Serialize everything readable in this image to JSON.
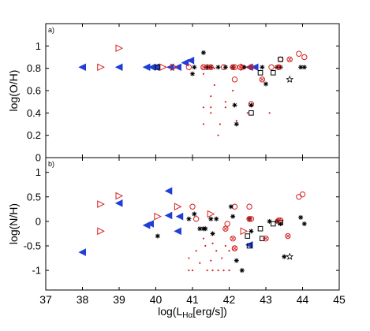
{
  "chart_data": [
    {
      "type": "scatter",
      "panel_label": "a)",
      "ylabel": "log(O/H)",
      "xlabel": "",
      "xlim": [
        37,
        45
      ],
      "ylim": [
        0,
        1.2
      ],
      "xticks": [
        "37",
        "38",
        "39",
        "40",
        "41",
        "42",
        "43",
        "44",
        "45"
      ],
      "yticks": [
        "0",
        "0.2",
        "0.4",
        "0.6",
        "0.8",
        "1"
      ],
      "ytick_values": [
        0,
        0.2,
        0.4,
        0.6,
        0.8,
        1.0
      ],
      "series": [
        {
          "marker": "triangle-left-filled",
          "color": "#1f3fd6",
          "points": [
            [
              38.0,
              0.81
            ],
            [
              39.0,
              0.81
            ],
            [
              39.75,
              0.81
            ],
            [
              39.9,
              0.81
            ],
            [
              40.0,
              0.81
            ],
            [
              40.4,
              0.81
            ],
            [
              40.6,
              0.81
            ],
            [
              40.8,
              0.85
            ],
            [
              40.95,
              0.87
            ],
            [
              42.55,
              0.81
            ],
            [
              42.7,
              0.81
            ]
          ]
        },
        {
          "marker": "triangle-right-open",
          "color": "#d62020",
          "points": [
            [
              38.5,
              0.81
            ],
            [
              39.0,
              0.98
            ],
            [
              40.2,
              0.81
            ],
            [
              40.5,
              0.81
            ],
            [
              42.4,
              0.81
            ]
          ]
        },
        {
          "marker": "circle-open",
          "color": "#d62020",
          "points": [
            [
              40.9,
              0.81
            ],
            [
              41.3,
              0.81
            ],
            [
              41.4,
              0.81
            ],
            [
              41.85,
              0.81
            ],
            [
              42.15,
              0.81
            ],
            [
              42.15,
              0.7
            ],
            [
              42.6,
              0.81
            ],
            [
              42.6,
              0.48
            ],
            [
              43.15,
              0.81
            ],
            [
              43.4,
              0.88
            ],
            [
              43.9,
              0.93
            ],
            [
              44.05,
              0.9
            ]
          ]
        },
        {
          "marker": "asterisk",
          "color": "#000000",
          "points": [
            [
              41.0,
              0.75
            ],
            [
              41.05,
              0.81
            ],
            [
              41.3,
              0.94
            ],
            [
              41.4,
              0.81
            ],
            [
              41.5,
              0.81
            ],
            [
              41.7,
              0.81
            ],
            [
              41.9,
              0.81
            ],
            [
              42.1,
              0.81
            ],
            [
              42.15,
              0.47
            ],
            [
              42.2,
              0.3
            ],
            [
              42.4,
              0.81
            ],
            [
              42.6,
              0.47
            ],
            [
              42.9,
              0.81
            ],
            [
              43.0,
              0.66
            ],
            [
              43.3,
              0.81
            ],
            [
              43.4,
              0.81
            ],
            [
              43.95,
              0.81
            ],
            [
              44.05,
              0.81
            ]
          ]
        },
        {
          "marker": "square-open",
          "color": "#000000",
          "points": [
            [
              40.05,
              0.81
            ],
            [
              42.6,
              0.4
            ],
            [
              42.85,
              0.76
            ],
            [
              43.2,
              0.76
            ],
            [
              43.4,
              0.88
            ]
          ]
        },
        {
          "marker": "circle-x",
          "color": "#d62020",
          "points": [
            [
              41.3,
              0.81
            ],
            [
              41.5,
              0.81
            ],
            [
              42.1,
              0.81
            ],
            [
              42.3,
              0.81
            ],
            [
              42.6,
              0.81
            ],
            [
              42.9,
              0.7
            ],
            [
              43.35,
              0.81
            ],
            [
              43.65,
              0.88
            ]
          ]
        },
        {
          "marker": "star",
          "color": "#000000",
          "points": [
            [
              43.65,
              0.7
            ]
          ]
        },
        {
          "marker": "dot",
          "color": "#d62020",
          "points": [
            [
              41.3,
              0.75
            ],
            [
              41.3,
              0.45
            ],
            [
              41.3,
              0.3
            ],
            [
              41.5,
              0.55
            ],
            [
              41.5,
              0.45
            ],
            [
              41.5,
              0.4
            ],
            [
              41.6,
              0.8
            ],
            [
              41.6,
              0.65
            ],
            [
              41.7,
              0.2
            ],
            [
              41.75,
              0.3
            ],
            [
              41.9,
              0.5
            ],
            [
              41.9,
              0.45
            ],
            [
              42.1,
              0.6
            ],
            [
              42.2,
              0.33
            ],
            [
              42.5,
              0.4
            ],
            [
              43.1,
              0.4
            ]
          ]
        }
      ]
    },
    {
      "type": "scatter",
      "panel_label": "b)",
      "ylabel": "log(N/H)",
      "xlabel": "log(L",
      "xlabel_sub": "Hα",
      "xlabel_tail": "[erg/s])",
      "xlim": [
        37,
        45
      ],
      "ylim": [
        -1.4,
        1.3
      ],
      "xticks": [
        "37",
        "38",
        "39",
        "40",
        "41",
        "42",
        "43",
        "44",
        "45"
      ],
      "yticks": [
        "-1",
        "-0.5",
        "0",
        "0.5",
        "1"
      ],
      "ytick_values": [
        -1,
        -0.5,
        0,
        0.5,
        1
      ],
      "series": [
        {
          "marker": "triangle-left-filled",
          "color": "#1f3fd6",
          "points": [
            [
              38.0,
              -0.63
            ],
            [
              39.0,
              0.37
            ],
            [
              39.75,
              -0.08
            ],
            [
              39.85,
              -0.05
            ],
            [
              40.35,
              0.62
            ],
            [
              40.35,
              0.12
            ],
            [
              40.6,
              -0.2
            ],
            [
              40.65,
              0.1
            ],
            [
              42.55,
              -0.48
            ]
          ]
        },
        {
          "marker": "triangle-right-open",
          "color": "#d62020",
          "points": [
            [
              38.5,
              0.35
            ],
            [
              38.5,
              -0.2
            ],
            [
              39.0,
              0.52
            ],
            [
              40.05,
              0.1
            ],
            [
              40.6,
              0.3
            ],
            [
              41.5,
              0.15
            ],
            [
              42.4,
              -0.2
            ]
          ]
        },
        {
          "marker": "circle-open",
          "color": "#d62020",
          "points": [
            [
              41.0,
              0.3
            ],
            [
              41.1,
              0.05
            ],
            [
              41.95,
              -0.05
            ],
            [
              42.15,
              0.3
            ],
            [
              42.15,
              -0.55
            ],
            [
              42.55,
              0.3
            ],
            [
              42.6,
              0.05
            ],
            [
              43.4,
              0.02
            ],
            [
              43.9,
              0.5
            ],
            [
              44.0,
              0.55
            ]
          ]
        },
        {
          "marker": "asterisk",
          "color": "#000000",
          "points": [
            [
              40.05,
              -0.3
            ],
            [
              40.9,
              0.05
            ],
            [
              41.05,
              0.15
            ],
            [
              41.2,
              -0.15
            ],
            [
              41.3,
              -0.15
            ],
            [
              41.35,
              -0.15
            ],
            [
              41.5,
              0.05
            ],
            [
              41.55,
              -0.25
            ],
            [
              41.65,
              0.05
            ],
            [
              42.05,
              0.3
            ],
            [
              42.1,
              0.1
            ],
            [
              42.2,
              -0.8
            ],
            [
              42.35,
              -1.0
            ],
            [
              42.55,
              0.05
            ],
            [
              42.6,
              -0.2
            ],
            [
              43.1,
              0.0
            ],
            [
              43.3,
              0.0
            ],
            [
              43.4,
              -0.05
            ],
            [
              43.5,
              -0.72
            ],
            [
              43.95,
              0.08
            ],
            [
              44.05,
              -0.05
            ]
          ]
        },
        {
          "marker": "square-open",
          "color": "#000000",
          "points": [
            [
              42.5,
              -0.3
            ],
            [
              42.55,
              -0.5
            ],
            [
              42.85,
              -0.15
            ],
            [
              42.9,
              -0.35
            ],
            [
              43.2,
              -0.05
            ],
            [
              43.4,
              -0.02
            ]
          ]
        },
        {
          "marker": "circle-x",
          "color": "#d62020",
          "points": [
            [
              41.9,
              -0.15
            ],
            [
              42.1,
              -0.35
            ],
            [
              42.15,
              -0.55
            ],
            [
              42.55,
              0.05
            ],
            [
              43.0,
              -0.35
            ],
            [
              43.35,
              0.02
            ],
            [
              43.6,
              -0.3
            ]
          ]
        },
        {
          "marker": "star",
          "color": "#000000",
          "points": [
            [
              43.65,
              -0.72
            ]
          ]
        },
        {
          "marker": "dot",
          "color": "#d62020",
          "points": [
            [
              40.9,
              -0.75
            ],
            [
              40.9,
              -1.0
            ],
            [
              41.0,
              -1.0
            ],
            [
              41.1,
              -0.6
            ],
            [
              41.2,
              -0.85
            ],
            [
              41.3,
              -0.35
            ],
            [
              41.35,
              -0.5
            ],
            [
              41.4,
              -1.0
            ],
            [
              41.5,
              -0.8
            ],
            [
              41.55,
              -0.45
            ],
            [
              41.55,
              -1.0
            ],
            [
              41.65,
              -0.6
            ],
            [
              41.7,
              -1.0
            ],
            [
              41.8,
              -0.75
            ],
            [
              41.85,
              -1.0
            ],
            [
              41.9,
              -0.5
            ],
            [
              42.0,
              -0.6
            ],
            [
              42.0,
              -1.0
            ]
          ]
        }
      ]
    }
  ]
}
